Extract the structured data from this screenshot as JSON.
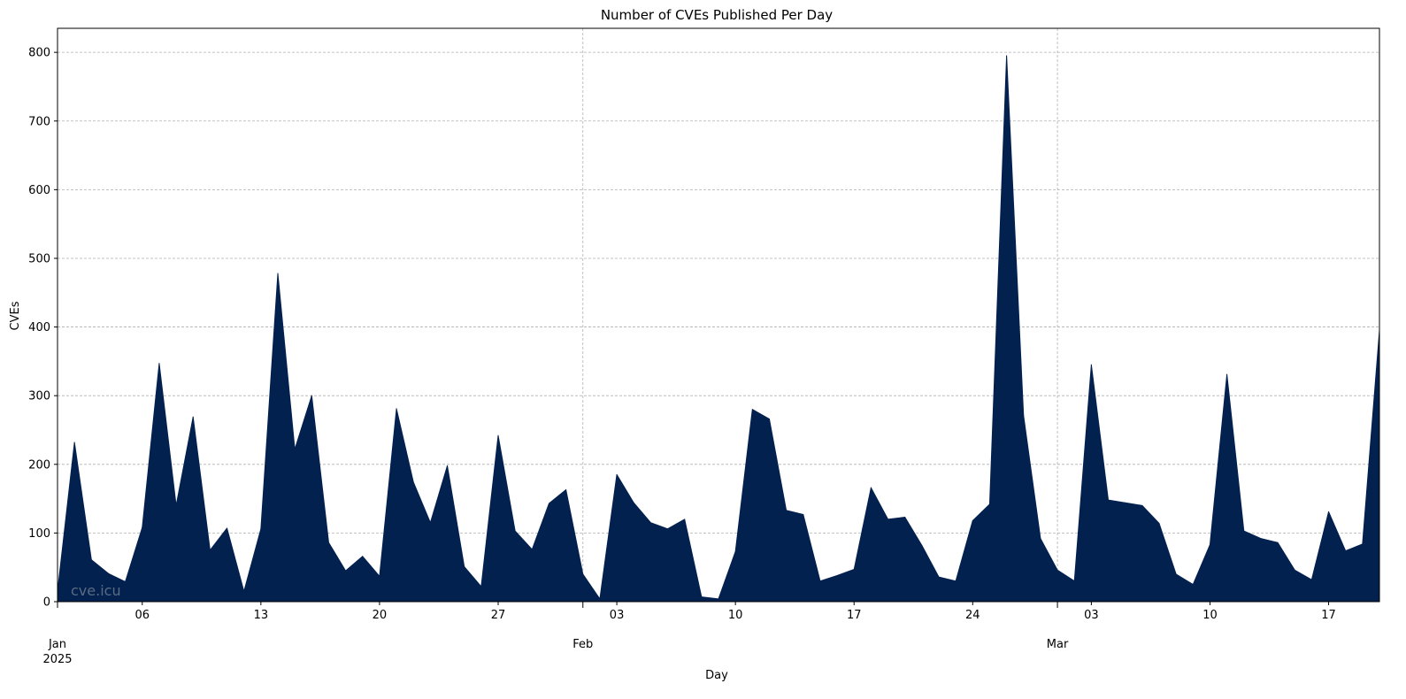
{
  "chart_data": {
    "type": "area",
    "title": "Number of CVEs Published Per Day",
    "xlabel": "Day",
    "ylabel": "CVEs",
    "ylim": [
      0,
      835
    ],
    "xlim": [
      "2025-01-01",
      "2025-03-20"
    ],
    "grid": true,
    "color": "#03214f",
    "watermark": "cve.icu",
    "y_ticks": [
      "0",
      "100",
      "200",
      "300",
      "400",
      "500",
      "600",
      "700",
      "800"
    ],
    "x_ticks": [
      {
        "date": "2025-01-01",
        "label": "Jan",
        "sublabel": "2025",
        "major": true
      },
      {
        "date": "2025-01-06",
        "label": "06",
        "major": false
      },
      {
        "date": "2025-01-13",
        "label": "13",
        "major": false
      },
      {
        "date": "2025-01-20",
        "label": "20",
        "major": false
      },
      {
        "date": "2025-01-27",
        "label": "27",
        "major": false
      },
      {
        "date": "2025-02-01",
        "label": "Feb",
        "major": true
      },
      {
        "date": "2025-02-03",
        "label": "03",
        "major": false
      },
      {
        "date": "2025-02-10",
        "label": "10",
        "major": false
      },
      {
        "date": "2025-02-17",
        "label": "17",
        "major": false
      },
      {
        "date": "2025-02-24",
        "label": "24",
        "major": false
      },
      {
        "date": "2025-03-01",
        "label": "Mar",
        "major": true
      },
      {
        "date": "2025-03-03",
        "label": "03",
        "major": false
      },
      {
        "date": "2025-03-10",
        "label": "10",
        "major": false
      },
      {
        "date": "2025-03-17",
        "label": "17",
        "major": false
      }
    ],
    "x": [
      "2025-01-01",
      "2025-01-02",
      "2025-01-03",
      "2025-01-04",
      "2025-01-05",
      "2025-01-06",
      "2025-01-07",
      "2025-01-08",
      "2025-01-09",
      "2025-01-10",
      "2025-01-11",
      "2025-01-12",
      "2025-01-13",
      "2025-01-14",
      "2025-01-15",
      "2025-01-16",
      "2025-01-17",
      "2025-01-18",
      "2025-01-19",
      "2025-01-20",
      "2025-01-21",
      "2025-01-22",
      "2025-01-23",
      "2025-01-24",
      "2025-01-25",
      "2025-01-26",
      "2025-01-27",
      "2025-01-28",
      "2025-01-29",
      "2025-01-30",
      "2025-01-31",
      "2025-02-01",
      "2025-02-02",
      "2025-02-03",
      "2025-02-04",
      "2025-02-05",
      "2025-02-06",
      "2025-02-07",
      "2025-02-08",
      "2025-02-09",
      "2025-02-10",
      "2025-02-11",
      "2025-02-12",
      "2025-02-13",
      "2025-02-14",
      "2025-02-15",
      "2025-02-16",
      "2025-02-17",
      "2025-02-18",
      "2025-02-19",
      "2025-02-20",
      "2025-02-21",
      "2025-02-22",
      "2025-02-23",
      "2025-02-24",
      "2025-02-25",
      "2025-02-26",
      "2025-02-27",
      "2025-02-28",
      "2025-03-01",
      "2025-03-02",
      "2025-03-03",
      "2025-03-04",
      "2025-03-05",
      "2025-03-06",
      "2025-03-07",
      "2025-03-08",
      "2025-03-09",
      "2025-03-10",
      "2025-03-11",
      "2025-03-12",
      "2025-03-13",
      "2025-03-14",
      "2025-03-15",
      "2025-03-16",
      "2025-03-17",
      "2025-03-18",
      "2025-03-19",
      "2025-03-20"
    ],
    "values": [
      15,
      232,
      61,
      41,
      29,
      108,
      347,
      140,
      269,
      75,
      107,
      15,
      106,
      478,
      222,
      300,
      86,
      45,
      66,
      37,
      281,
      174,
      115,
      198,
      51,
      22,
      242,
      103,
      76,
      143,
      163,
      40,
      4,
      185,
      144,
      115,
      106,
      120,
      7,
      4,
      73,
      280,
      266,
      133,
      127,
      30,
      38,
      47,
      166,
      120,
      123,
      82,
      36,
      30,
      118,
      142,
      795,
      271,
      92,
      46,
      30,
      345,
      148,
      144,
      140,
      114,
      40,
      25,
      83,
      331,
      103,
      92,
      86,
      46,
      32,
      131,
      74,
      84,
      395
    ]
  }
}
